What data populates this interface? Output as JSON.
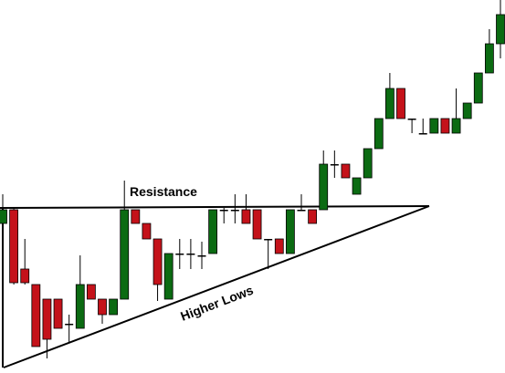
{
  "chart_data": {
    "type": "candlestick",
    "categories": [
      null,
      null,
      null,
      null,
      null,
      null,
      null,
      null,
      null,
      null,
      null,
      null,
      null,
      null,
      null,
      null,
      null,
      null,
      null,
      null,
      null,
      null,
      null,
      null,
      null,
      null,
      null,
      null,
      null,
      null,
      null,
      null,
      null,
      null,
      null,
      null,
      null,
      null,
      null,
      null,
      null,
      null,
      null,
      null,
      null,
      null
    ],
    "open": [
      164,
      179,
      114,
      97,
      81,
      81,
      54,
      49,
      97,
      81,
      64,
      81,
      179,
      164,
      147,
      81,
      131,
      131,
      129,
      131,
      179,
      179,
      179,
      179,
      147,
      147,
      131,
      179,
      179,
      179,
      229,
      229,
      196,
      214,
      246,
      279,
      312,
      279,
      263,
      263,
      279,
      263,
      279,
      296,
      329,
      361
    ],
    "high": [
      196,
      181,
      147,
      97,
      81,
      81,
      64,
      129,
      97,
      81,
      81,
      211,
      179,
      164,
      147,
      131,
      147,
      147,
      144,
      179,
      181,
      196,
      196,
      179,
      147,
      147,
      179,
      196,
      179,
      244,
      244,
      229,
      214,
      246,
      279,
      329,
      312,
      279,
      279,
      279,
      279,
      312,
      296,
      329,
      377,
      409
    ],
    "low": [
      97,
      97,
      97,
      29,
      16,
      49,
      34,
      49,
      81,
      54,
      64,
      81,
      164,
      147,
      79,
      81,
      114,
      114,
      114,
      131,
      164,
      164,
      164,
      147,
      114,
      131,
      131,
      179,
      164,
      179,
      214,
      214,
      196,
      214,
      246,
      279,
      279,
      263,
      263,
      263,
      263,
      263,
      279,
      296,
      329,
      345
    ],
    "close": [
      179,
      99,
      99,
      29,
      37,
      49,
      54,
      97,
      81,
      64,
      81,
      179,
      164,
      147,
      97,
      131,
      131,
      131,
      129,
      179,
      179,
      179,
      164,
      147,
      147,
      131,
      179,
      179,
      164,
      229,
      229,
      214,
      214,
      246,
      279,
      312,
      279,
      279,
      263,
      279,
      263,
      279,
      296,
      329,
      361,
      393
    ],
    "up_color": "#0b6b12",
    "down_color": "#c4121a",
    "ylim": [
      0,
      409
    ],
    "annotations": [
      "Resistance",
      "Higher Lows"
    ]
  }
}
